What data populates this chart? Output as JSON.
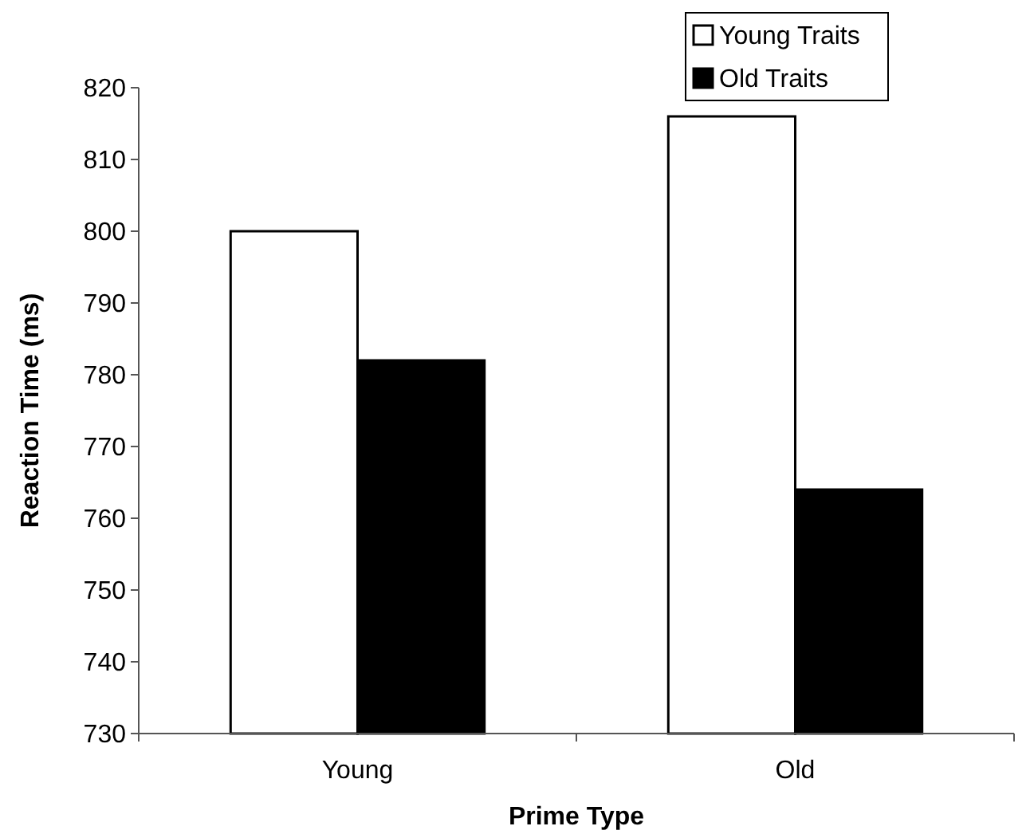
{
  "chart_data": {
    "type": "bar",
    "xlabel": "Prime Type",
    "ylabel": "Reaction Time (ms)",
    "categories": [
      "Young",
      "Old"
    ],
    "series": [
      {
        "name": "Young Traits",
        "color": "#ffffff",
        "values": [
          800,
          816
        ]
      },
      {
        "name": "Old Traits",
        "color": "#000000",
        "values": [
          782,
          764
        ]
      }
    ],
    "ylim": [
      730,
      820
    ],
    "yticks": [
      730,
      740,
      750,
      760,
      770,
      780,
      790,
      800,
      810,
      820
    ],
    "legend": "top right",
    "grid": false
  }
}
